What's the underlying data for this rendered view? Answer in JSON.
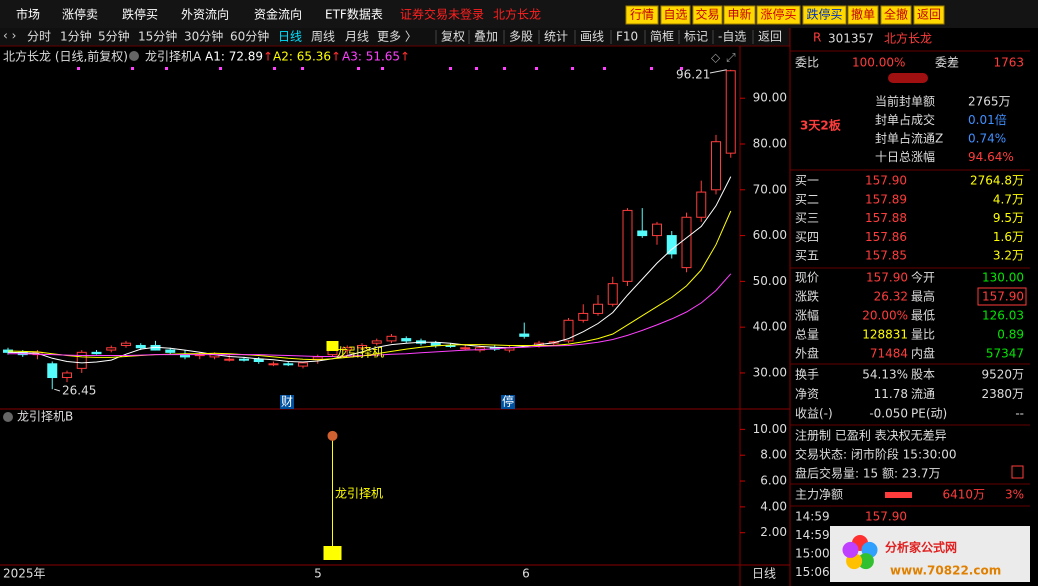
{
  "menu": {
    "items": [
      "市场",
      "涨停卖",
      "跌停买",
      "外资流向",
      "资金流向",
      "ETF数据表"
    ],
    "status": "证券交易未登录",
    "stock": "北方长龙",
    "buttons": [
      "行情",
      "自选",
      "交易",
      "申新",
      "涨停买",
      "跌停买",
      "撤单",
      "全撤",
      "返回"
    ]
  },
  "toolbar": {
    "periods": [
      "分时",
      "1分钟",
      "5分钟",
      "15分钟",
      "30分钟",
      "60分钟",
      "日线",
      "周线",
      "月线",
      "更多 〉"
    ],
    "active": "日线",
    "tools": [
      "复权",
      "叠加",
      "多股",
      "统计",
      "画线",
      "F10",
      "简框",
      "标记",
      "-自选",
      "返回"
    ]
  },
  "chart": {
    "title": "北方长龙 (日线,前复权)",
    "indicator": "龙引择机A",
    "legend": [
      {
        "label": "A1: 72.89",
        "arrow": "↑",
        "color": "#ffffff"
      },
      {
        "label": "A2: 65.36",
        "arrow": "↑",
        "color": "#ffff00"
      },
      {
        "label": "A3: 51.65",
        "arrow": "↑",
        "color": "#ff40ff"
      }
    ],
    "ylim": [
      23,
      99
    ],
    "yticks": [
      {
        "value": 30,
        "label": "30.00"
      },
      {
        "value": 40,
        "label": "40.00"
      },
      {
        "value": 50,
        "label": "50.00"
      },
      {
        "value": 60,
        "label": "60.00"
      },
      {
        "value": 70,
        "label": "70.00"
      },
      {
        "value": 80,
        "label": "80.00"
      },
      {
        "value": 90,
        "label": "90.00"
      }
    ],
    "candles": {
      "open": [
        35,
        34.5,
        34,
        32,
        29,
        31,
        34.5,
        35,
        36,
        36,
        36,
        35,
        34,
        34,
        33.5,
        33,
        33,
        33,
        32,
        32,
        31.5,
        33,
        34,
        35,
        35.5,
        36.5,
        37,
        37.5,
        37,
        36.5,
        36,
        35.5,
        35,
        35.5,
        35,
        38.5,
        36,
        36.5,
        37,
        41.5,
        43,
        45,
        50,
        61,
        60,
        60,
        53,
        64,
        70,
        78
      ],
      "high": [
        35.5,
        35,
        35,
        32.5,
        30.5,
        35,
        35,
        36,
        37,
        36.5,
        37,
        35.5,
        35,
        34.5,
        34.5,
        34,
        33.5,
        33.5,
        32.5,
        32.5,
        32.5,
        34,
        36.5,
        36,
        36.5,
        37.5,
        38.5,
        38,
        37.5,
        37,
        36.5,
        36,
        36,
        36,
        36,
        41,
        37,
        37,
        42,
        45,
        47,
        51,
        66,
        66,
        63,
        61,
        65,
        72,
        82,
        96.21
      ],
      "low": [
        34,
        33.5,
        33,
        26.45,
        28,
        30,
        34,
        34.5,
        35.5,
        35,
        35,
        34,
        33,
        33,
        33,
        32.5,
        32.5,
        32,
        31.5,
        31.5,
        31,
        32,
        33.5,
        34,
        35,
        36,
        36.5,
        36.5,
        36,
        35.5,
        35.5,
        35,
        34.5,
        34.8,
        34.5,
        37.5,
        35.5,
        36,
        36.5,
        41,
        42.5,
        44.5,
        49,
        59.5,
        58,
        55,
        52,
        63,
        69,
        77
      ],
      "close": [
        34.5,
        34,
        34.5,
        29,
        30,
        34.5,
        34.2,
        35.5,
        36.5,
        35.5,
        35,
        34.5,
        33.5,
        34,
        34,
        33,
        32.8,
        32.5,
        32,
        31.8,
        32.2,
        33.5,
        36,
        35.5,
        36,
        37,
        38,
        37,
        36.5,
        36,
        35.8,
        35.5,
        35.5,
        35.2,
        35.5,
        38,
        36.5,
        36.8,
        41.5,
        43,
        45,
        49.5,
        65.5,
        60,
        62.5,
        56,
        64,
        69.5,
        80.5,
        96
      ]
    },
    "ma": [
      {
        "color": "#ffffff",
        "values": [
          34.5,
          34.4,
          34.3,
          33.2,
          32.5,
          32.2,
          32.4,
          32.8,
          34.1,
          35.2,
          35.6,
          35.4,
          35,
          34.5,
          34,
          33.6,
          33.4,
          33.1,
          32.9,
          32.5,
          32.4,
          32.6,
          33.1,
          33.8,
          34.6,
          35.6,
          36.2,
          36.5,
          36.7,
          36.7,
          36.5,
          36.1,
          35.8,
          35.6,
          35.5,
          35.8,
          36.2,
          36.6,
          37.5,
          39,
          40.8,
          43.2,
          47,
          50.5,
          54,
          57,
          59.5,
          62,
          66.5,
          72.89
        ]
      },
      {
        "color": "#ffff00",
        "values": [
          34.8,
          34.7,
          34.6,
          34.2,
          33.8,
          33.5,
          33.4,
          33.4,
          33.6,
          33.8,
          34,
          34.1,
          34.2,
          34.2,
          34.3,
          34.2,
          34,
          33.8,
          33.5,
          33.2,
          33,
          32.9,
          33.1,
          33.4,
          33.7,
          34.2,
          34.7,
          35.2,
          35.6,
          35.9,
          36.1,
          36.2,
          36.2,
          36.1,
          36,
          36,
          36,
          36,
          36.3,
          36.8,
          37.5,
          38.5,
          40.5,
          42.5,
          44.5,
          46.5,
          49,
          52.5,
          58,
          65.36
        ]
      },
      {
        "color": "#ff40ff",
        "values": [
          34.2,
          34.2,
          34.1,
          34,
          33.9,
          33.8,
          33.8,
          33.8,
          33.8,
          33.9,
          34,
          34,
          34,
          34,
          34,
          34,
          34,
          34,
          33.9,
          33.8,
          33.7,
          33.6,
          33.6,
          33.7,
          33.8,
          33.9,
          34.1,
          34.2,
          34.4,
          34.6,
          34.8,
          35,
          35.1,
          35.3,
          35.5,
          35.6,
          35.8,
          35.9,
          36,
          36.3,
          36.7,
          37.3,
          38.2,
          39.3,
          40.5,
          41.8,
          43.3,
          45.3,
          48,
          51.65
        ]
      }
    ],
    "high_label": "96.21",
    "low_label": "26.45",
    "signal_text": "龙引择机",
    "events": [
      "财",
      "停"
    ],
    "xlabels": [
      "2025年",
      "5",
      "6",
      "日线"
    ]
  },
  "indicator_b": {
    "title": "龙引择机B",
    "ylim": [
      -0.5,
      11.5
    ],
    "yticks": [
      {
        "value": 2,
        "label": "2.00"
      },
      {
        "value": 4,
        "label": "4.00"
      },
      {
        "value": 6,
        "label": "6.00"
      },
      {
        "value": 8,
        "label": "8.00"
      },
      {
        "value": 10,
        "label": "10.00"
      }
    ],
    "signal_text": "龙引择机",
    "signal_value": 9.5
  },
  "panel": {
    "badge": "R",
    "code": "301357",
    "name": "北方长龙",
    "ratio": [
      "委比",
      "100.00%",
      "委差",
      "1763"
    ],
    "streak": "3天2板",
    "seal": [
      [
        "当前封单额",
        "2765万"
      ],
      [
        "封单占成交",
        "0.01倍"
      ],
      [
        "封单占流通Z",
        "0.74%"
      ],
      [
        "十日总涨幅",
        "94.64%"
      ]
    ],
    "book": [
      [
        "买一",
        "157.90",
        "2764.8万"
      ],
      [
        "买二",
        "157.89",
        "4.7万"
      ],
      [
        "买三",
        "157.88",
        "9.5万"
      ],
      [
        "买四",
        "157.86",
        "1.6万"
      ],
      [
        "买五",
        "157.85",
        "3.2万"
      ]
    ],
    "quote": [
      [
        "现价",
        "157.90",
        "今开",
        "130.00"
      ],
      [
        "涨跌",
        "26.32",
        "最高",
        "157.90"
      ],
      [
        "涨幅",
        "20.00%",
        "最低",
        "126.03"
      ],
      [
        "总量",
        "128831",
        "量比",
        "0.89"
      ],
      [
        "外盘",
        "71484",
        "内盘",
        "57347"
      ]
    ],
    "stats": [
      [
        "换手",
        "54.13%",
        "股本",
        "9520万"
      ],
      [
        "净资",
        "11.78",
        "流通",
        "2380万"
      ],
      [
        "收益(-)",
        "-0.050",
        "PE(动)",
        "--"
      ]
    ],
    "notes": [
      "注册制 已盈利 表决权无差异",
      "交易状态: 闭市阶段 15:30:00",
      "盘后交易量: 15  额: 23.7万"
    ],
    "flow": [
      "主力净额",
      "6410万",
      "3%"
    ],
    "ticks": [
      [
        "14:59",
        "157.90"
      ],
      [
        "14:59"
      ],
      [
        "15:00"
      ],
      [
        "15:06"
      ]
    ],
    "logo": [
      "分析家公式网",
      "www.70822.com"
    ]
  }
}
